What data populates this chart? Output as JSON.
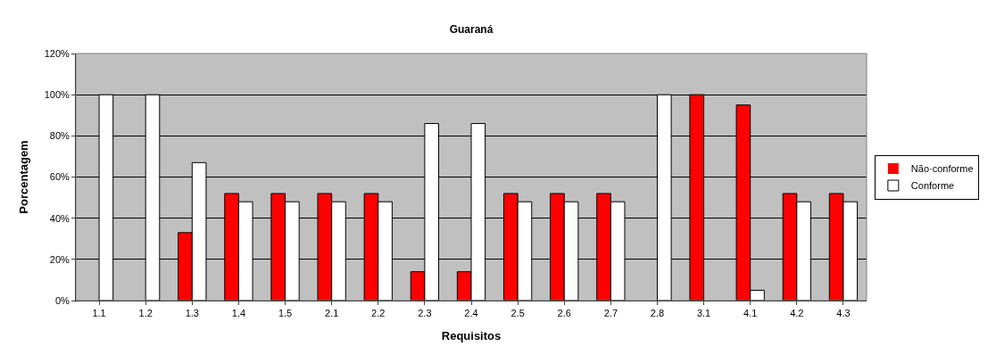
{
  "chart_data": {
    "type": "bar",
    "title": "Guaraná",
    "xlabel": "Requisitos",
    "ylabel": "Porcentagem",
    "categories": [
      "1.1",
      "1.2",
      "1.3",
      "1.4",
      "1.5",
      "2.1",
      "2.2",
      "2.3",
      "2.4",
      "2.5",
      "2.6",
      "2.7",
      "2.8",
      "3.1",
      "4.1",
      "4.2",
      "4.3"
    ],
    "series": [
      {
        "name": "Não·conforme",
        "color": "#ff0000",
        "values": [
          0,
          0,
          33,
          52,
          52,
          52,
          52,
          14,
          14,
          52,
          52,
          52,
          0,
          100,
          95,
          52,
          52
        ]
      },
      {
        "name": "Conforme",
        "color": "#ffffff",
        "values": [
          100,
          100,
          67,
          48,
          48,
          48,
          48,
          86,
          86,
          48,
          48,
          48,
          100,
          0,
          5,
          48,
          48
        ]
      }
    ],
    "ylim": [
      0,
      120
    ],
    "yticks": [
      {
        "value": 0,
        "label": "0%"
      },
      {
        "value": 20,
        "label": "20%"
      },
      {
        "value": 40,
        "label": "40%"
      },
      {
        "value": 60,
        "label": "60%"
      },
      {
        "value": 80,
        "label": "80%"
      },
      {
        "value": 100,
        "label": "100%"
      },
      {
        "value": 120,
        "label": "120%"
      }
    ],
    "grid": "y",
    "legend": "right"
  }
}
